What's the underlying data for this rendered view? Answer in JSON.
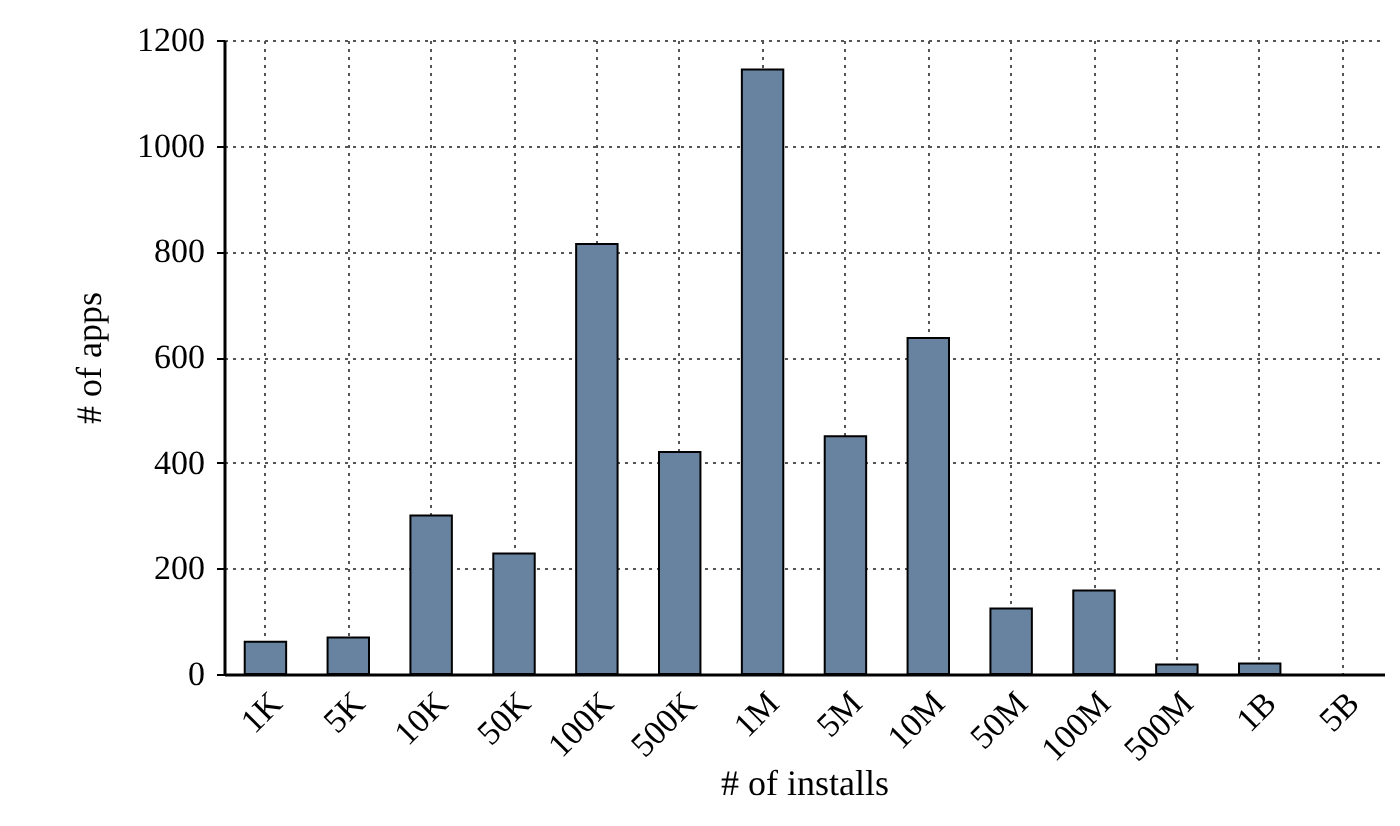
{
  "chart_data": {
    "type": "bar",
    "xlabel": "# of installs",
    "ylabel": "# of apps",
    "categories": [
      "1K",
      "5K",
      "10K",
      "50K",
      "100K",
      "500K",
      "1M",
      "5M",
      "10M",
      "50M",
      "100M",
      "500M",
      "1B",
      "5B"
    ],
    "values": [
      61,
      69,
      300,
      228,
      814,
      420,
      1144,
      450,
      636,
      124,
      158,
      18,
      20,
      null
    ],
    "color": "#6783a0",
    "ylim": [
      0,
      1200
    ],
    "yticks": [
      0,
      200,
      400,
      600,
      800,
      1000,
      1200
    ],
    "grid": true
  }
}
